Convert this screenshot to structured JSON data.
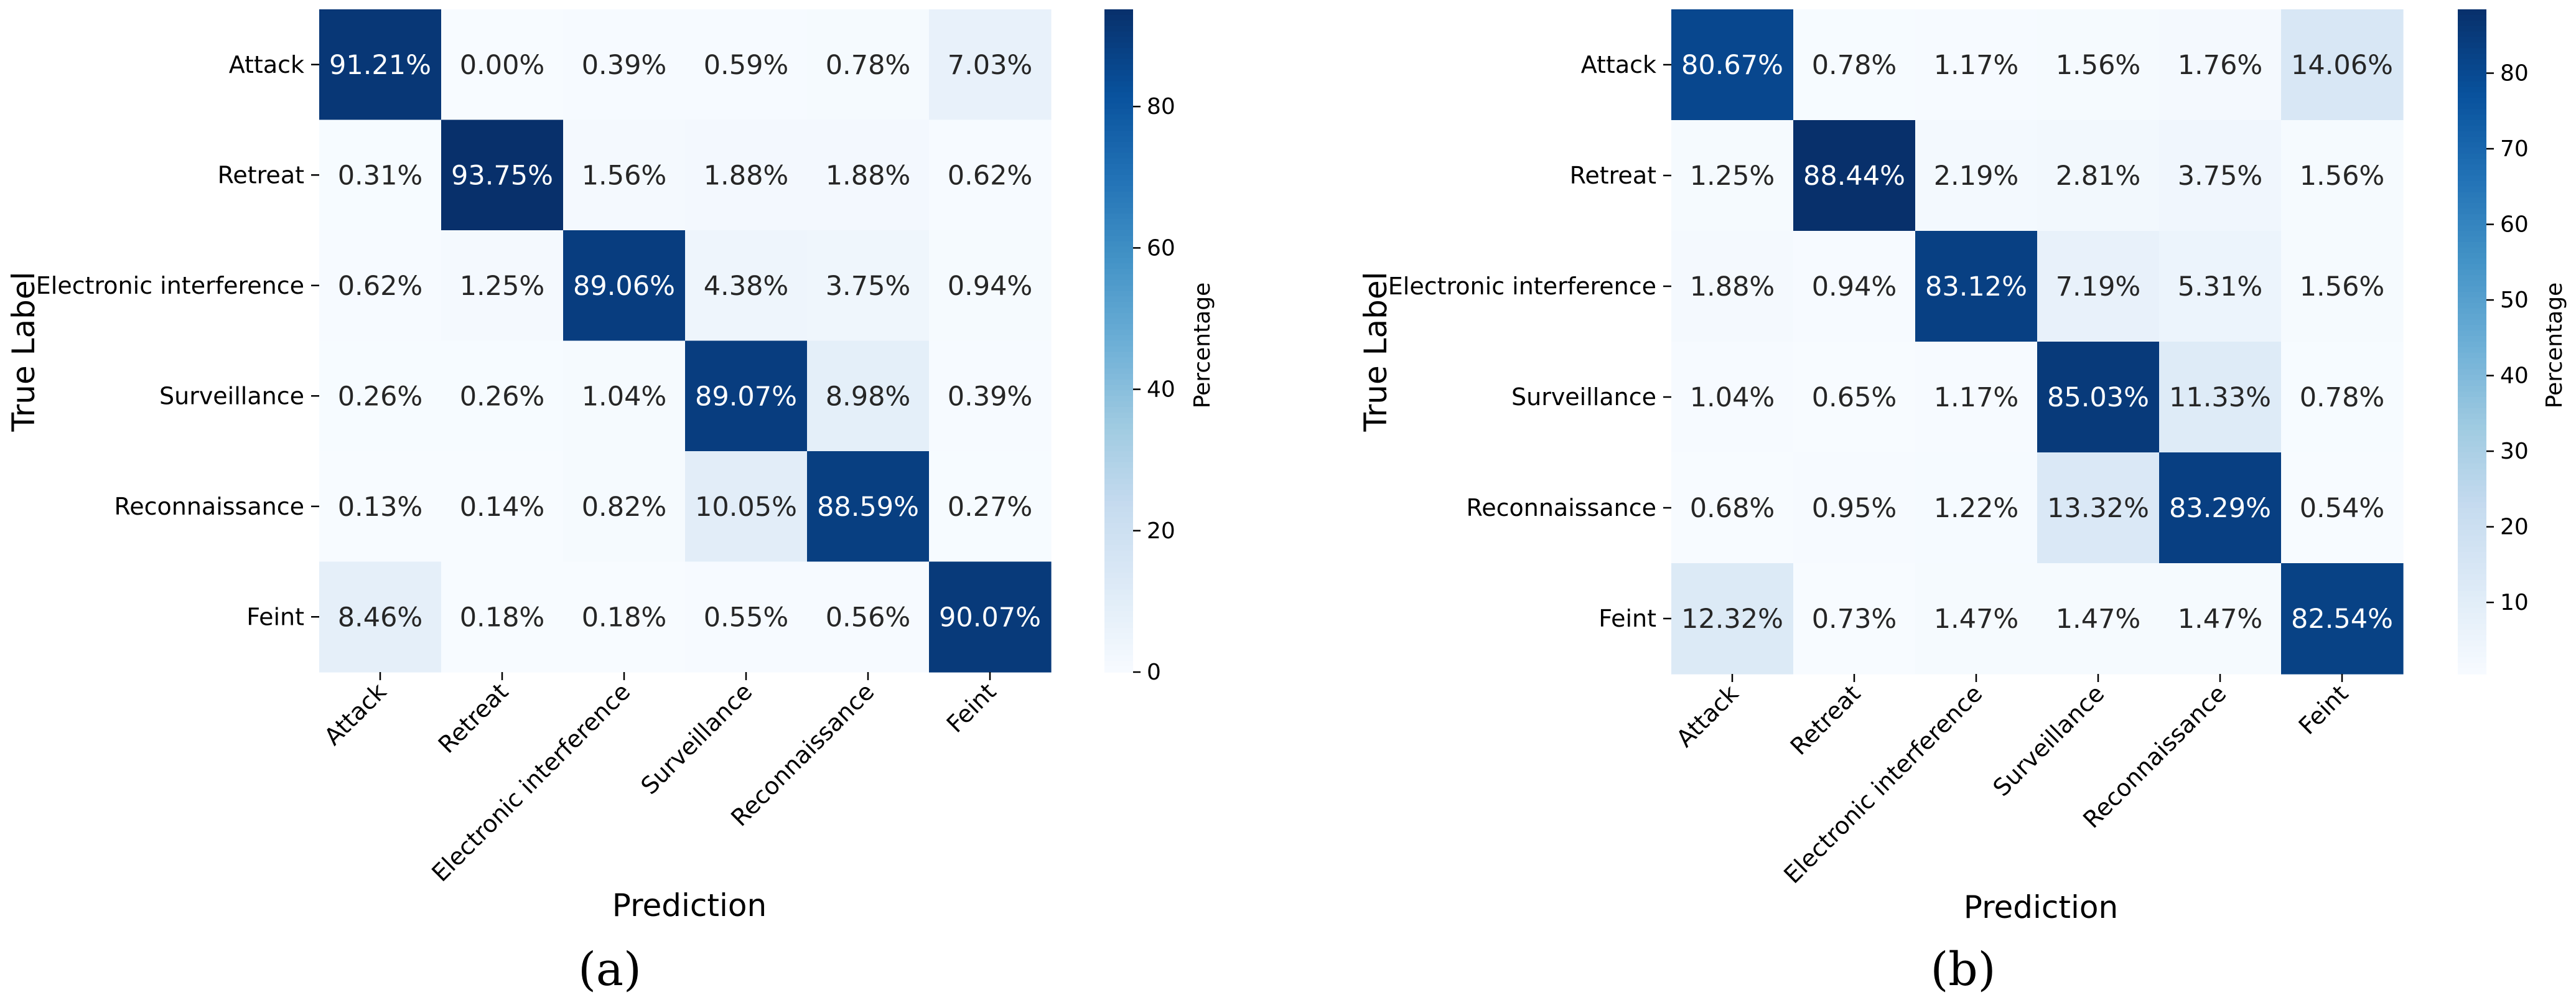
{
  "chart_data": [
    {
      "type": "heatmap",
      "panel_label": "(a)",
      "xlabel": "Prediction",
      "ylabel": "True Label",
      "x_categories": [
        "Attack",
        "Retreat",
        "Electronic interference",
        "Surveillance",
        "Reconnaissance",
        "Feint"
      ],
      "y_categories": [
        "Attack",
        "Retreat",
        "Electronic interference",
        "Surveillance",
        "Reconnaissance",
        "Feint"
      ],
      "values": [
        [
          91.21,
          0.0,
          0.39,
          0.59,
          0.78,
          7.03
        ],
        [
          0.31,
          93.75,
          1.56,
          1.88,
          1.88,
          0.62
        ],
        [
          0.62,
          1.25,
          89.06,
          4.38,
          3.75,
          0.94
        ],
        [
          0.26,
          0.26,
          1.04,
          89.07,
          8.98,
          0.39
        ],
        [
          0.13,
          0.14,
          0.82,
          10.05,
          88.59,
          0.27
        ],
        [
          8.46,
          0.18,
          0.18,
          0.55,
          0.56,
          90.07
        ]
      ],
      "cell_labels": [
        [
          "91.21%",
          "0.00%",
          "0.39%",
          "0.59%",
          "0.78%",
          "7.03%"
        ],
        [
          "0.31%",
          "93.75%",
          "1.56%",
          "1.88%",
          "1.88%",
          "0.62%"
        ],
        [
          "0.62%",
          "1.25%",
          "89.06%",
          "4.38%",
          "3.75%",
          "0.94%"
        ],
        [
          "0.26%",
          "0.26%",
          "1.04%",
          "89.07%",
          "8.98%",
          "0.39%"
        ],
        [
          "0.13%",
          "0.14%",
          "0.82%",
          "10.05%",
          "88.59%",
          "0.27%"
        ],
        [
          "8.46%",
          "0.18%",
          "0.18%",
          "0.55%",
          "0.56%",
          "90.07%"
        ]
      ],
      "colorbar": {
        "label": "Percentage",
        "vmin": 0,
        "vmax": 93.75,
        "ticks": [
          0,
          20,
          40,
          60,
          80
        ],
        "tick_labels": [
          "0",
          "20",
          "40",
          "60",
          "80"
        ]
      },
      "colormap": "Blues"
    },
    {
      "type": "heatmap",
      "panel_label": "(b)",
      "xlabel": "Prediction",
      "ylabel": "True Label",
      "x_categories": [
        "Attack",
        "Retreat",
        "Electronic interference",
        "Surveillance",
        "Reconnaissance",
        "Feint"
      ],
      "y_categories": [
        "Attack",
        "Retreat",
        "Electronic interference",
        "Surveillance",
        "Reconnaissance",
        "Feint"
      ],
      "values": [
        [
          80.67,
          0.78,
          1.17,
          1.56,
          1.76,
          14.06
        ],
        [
          1.25,
          88.44,
          2.19,
          2.81,
          3.75,
          1.56
        ],
        [
          1.88,
          0.94,
          83.12,
          7.19,
          5.31,
          1.56
        ],
        [
          1.04,
          0.65,
          1.17,
          85.03,
          11.33,
          0.78
        ],
        [
          0.68,
          0.95,
          1.22,
          13.32,
          83.29,
          0.54
        ],
        [
          12.32,
          0.73,
          1.47,
          1.47,
          1.47,
          82.54
        ]
      ],
      "cell_labels": [
        [
          "80.67%",
          "0.78%",
          "1.17%",
          "1.56%",
          "1.76%",
          "14.06%"
        ],
        [
          "1.25%",
          "88.44%",
          "2.19%",
          "2.81%",
          "3.75%",
          "1.56%"
        ],
        [
          "1.88%",
          "0.94%",
          "83.12%",
          "7.19%",
          "5.31%",
          "1.56%"
        ],
        [
          "1.04%",
          "0.65%",
          "1.17%",
          "85.03%",
          "11.33%",
          "0.78%"
        ],
        [
          "0.68%",
          "0.95%",
          "1.22%",
          "13.32%",
          "83.29%",
          "0.54%"
        ],
        [
          "12.32%",
          "0.73%",
          "1.47%",
          "1.47%",
          "1.47%",
          "82.54%"
        ]
      ],
      "colorbar": {
        "label": "Percentage",
        "vmin": 0.54,
        "vmax": 88.44,
        "ticks": [
          10,
          20,
          30,
          40,
          50,
          60,
          70,
          80
        ],
        "tick_labels": [
          "10",
          "20",
          "30",
          "40",
          "50",
          "60",
          "70",
          "80"
        ]
      },
      "colormap": "Blues"
    }
  ]
}
